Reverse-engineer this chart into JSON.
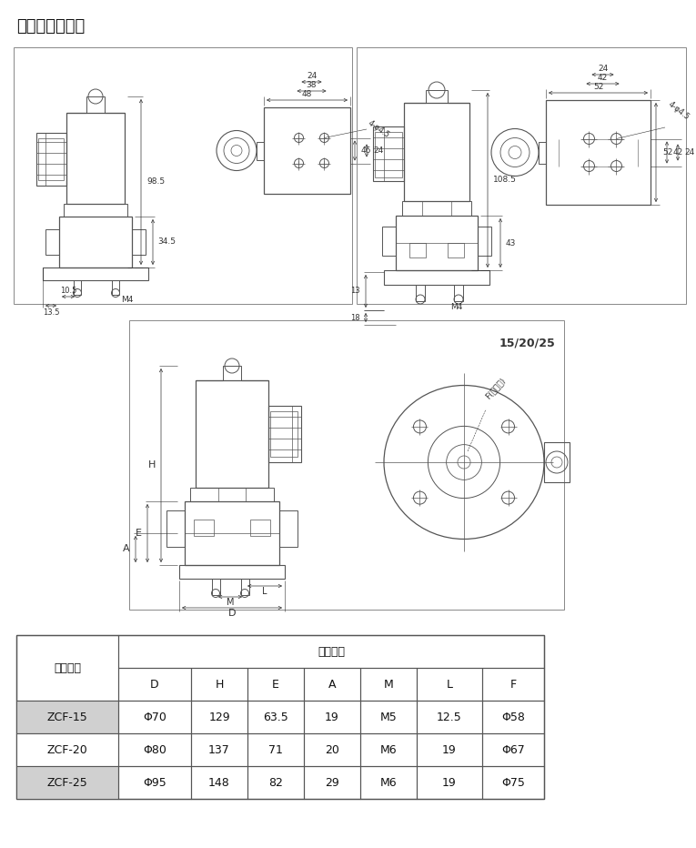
{
  "title": "结构外型尺寸图",
  "title_fontsize": 13,
  "background_color": "#ffffff",
  "table_header_col": "产品型号",
  "table_header_span": "外形尺寸",
  "table_col_headers": [
    "D",
    "H",
    "E",
    "A",
    "M",
    "L",
    "F"
  ],
  "table_data": [
    [
      "ZCF-15",
      "Φ70",
      "129",
      "63.5",
      "19",
      "M5",
      "12.5",
      "Φ58"
    ],
    [
      "ZCF-20",
      "Φ80",
      "137",
      "71",
      "20",
      "M6",
      "19",
      "Φ67"
    ],
    [
      "ZCF-25",
      "Φ95",
      "148",
      "82",
      "29",
      "M6",
      "19",
      "Φ75"
    ]
  ],
  "lc": "#555555",
  "dc": "#333333",
  "bc": "#888888"
}
